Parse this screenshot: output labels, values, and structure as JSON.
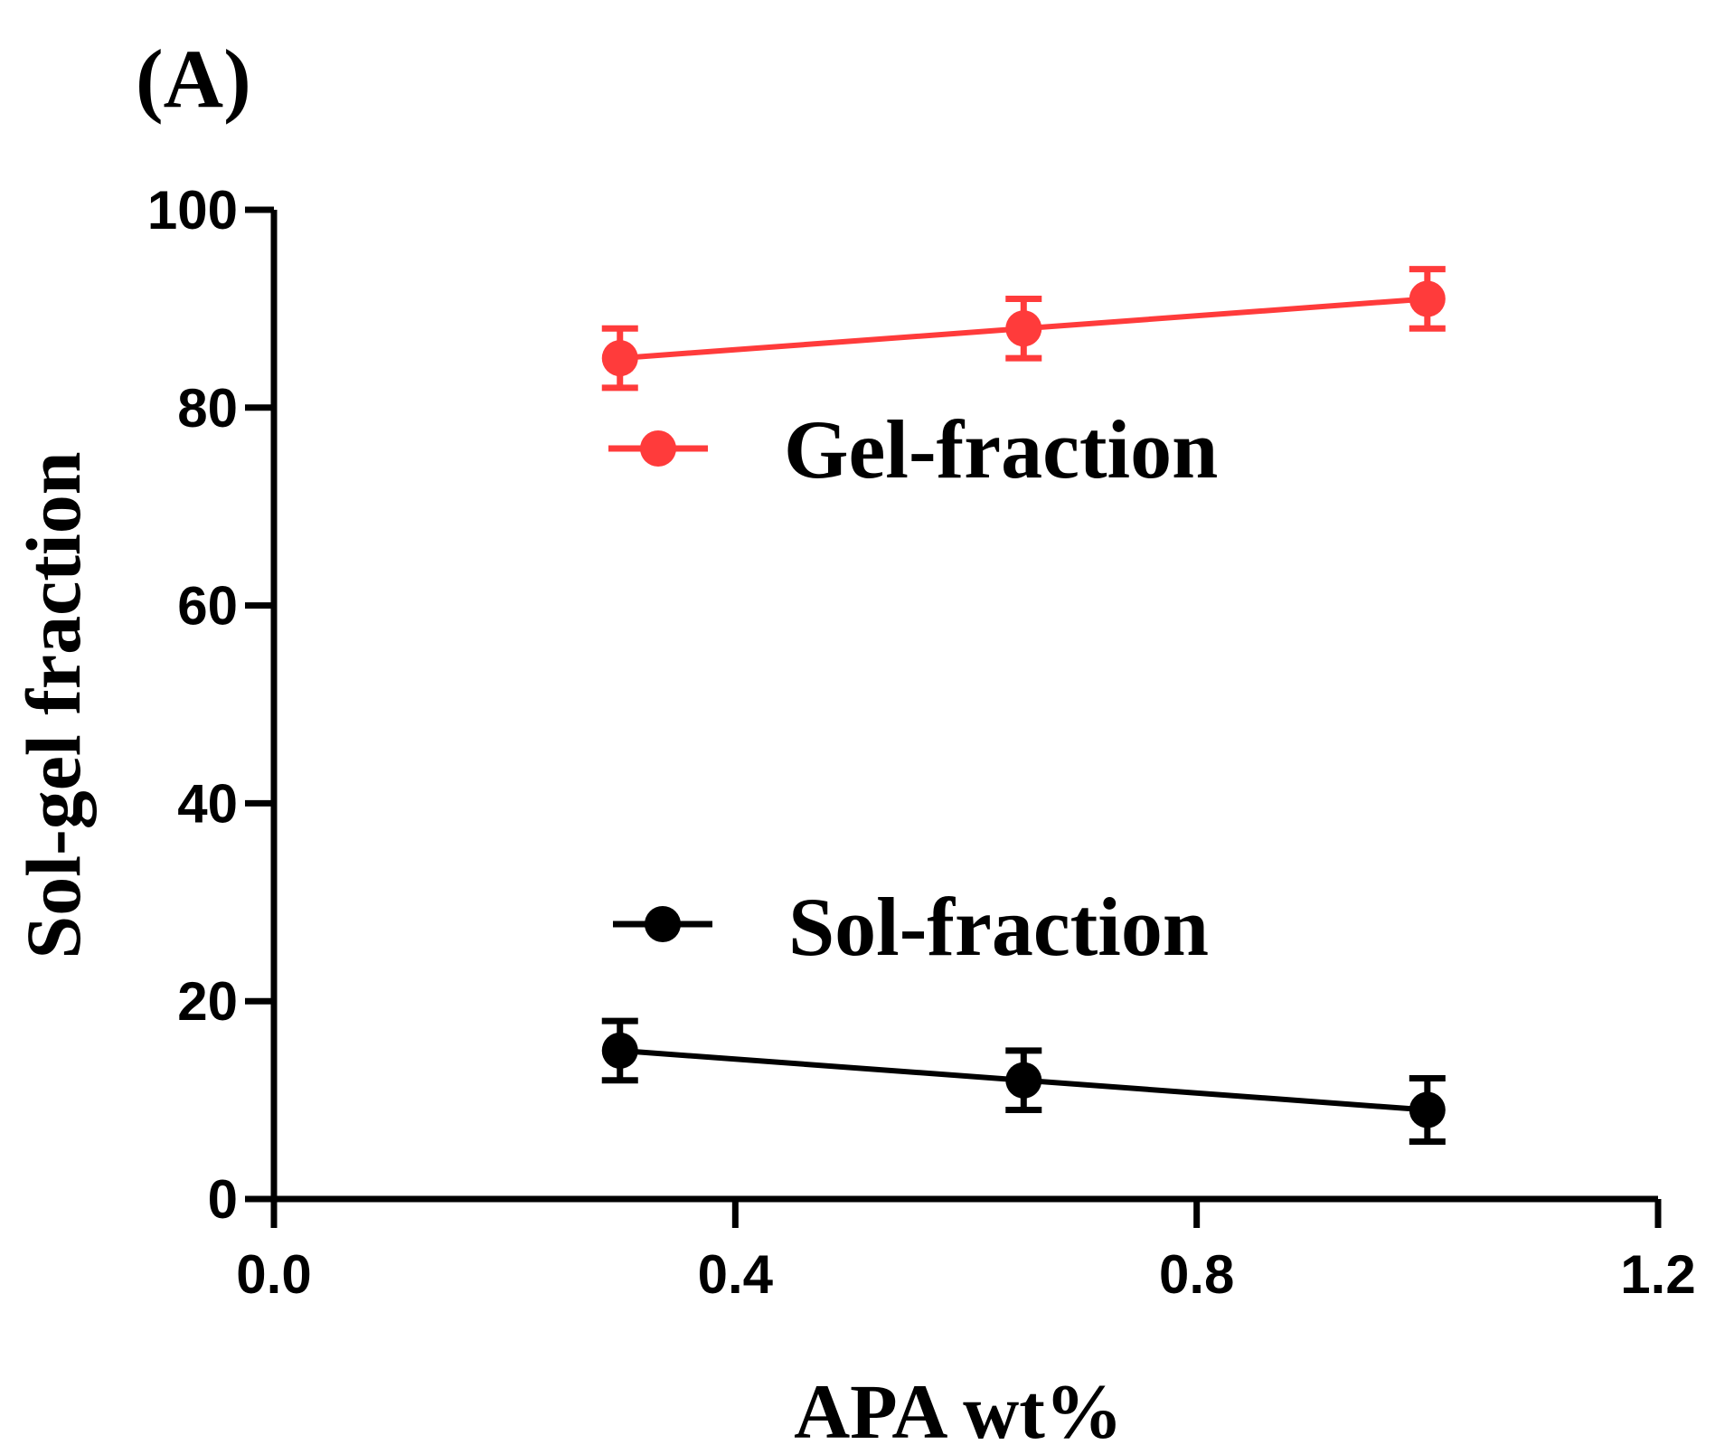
{
  "panel_label": "(A)",
  "colors": {
    "gel": "#ff3b3b",
    "sol": "#000000",
    "axis": "#000000",
    "background": "#ffffff"
  },
  "chart_data": {
    "type": "line",
    "title": "",
    "xlabel": "APA wt%",
    "ylabel": "Sol-gel fraction",
    "xlim": [
      0.0,
      1.2
    ],
    "ylim": [
      0,
      100
    ],
    "xticks": [
      0.0,
      0.4,
      0.8,
      1.2
    ],
    "xtick_labels": [
      "0.0",
      "0.4",
      "0.8",
      "1.2"
    ],
    "yticks": [
      0,
      20,
      40,
      60,
      80,
      100
    ],
    "ytick_labels": [
      "0",
      "20",
      "40",
      "60",
      "80",
      "100"
    ],
    "grid": false,
    "legend_position": "center-left inside plot",
    "series": [
      {
        "name": "Gel-fraction",
        "color": "#ff3b3b",
        "x": [
          0.3,
          0.65,
          1.0
        ],
        "y": [
          85,
          88,
          91
        ],
        "error": [
          3,
          3,
          3
        ]
      },
      {
        "name": "Sol-fraction",
        "color": "#000000",
        "x": [
          0.3,
          0.65,
          1.0
        ],
        "y": [
          15,
          12,
          9
        ],
        "error": [
          3,
          3,
          3.2
        ]
      }
    ]
  }
}
